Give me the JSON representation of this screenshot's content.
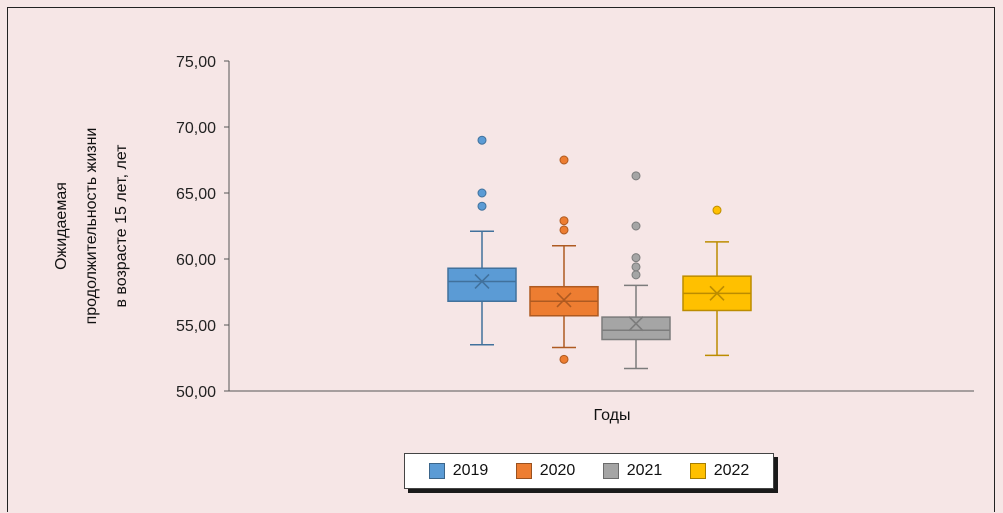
{
  "chart_data": {
    "type": "boxplot",
    "xlabel": "Годы",
    "ylabel_lines": [
      "Ожидаемая",
      "продолжительность жизни",
      "в возрасте 15 лет, лет"
    ],
    "ylim": [
      50,
      75
    ],
    "yticks": [
      "50,00",
      "55,00",
      "60,00",
      "65,00",
      "70,00",
      "75,00"
    ],
    "ytick_values": [
      50,
      55,
      60,
      65,
      70,
      75
    ],
    "series": [
      {
        "name": "2019",
        "color": "#5b9bd5",
        "stroke": "#41719c",
        "whisker_low": 53.5,
        "q1": 56.8,
        "median": 58.3,
        "q3": 59.3,
        "whisker_high": 62.1,
        "mean": 58.3,
        "outliers": [
          69.0,
          65.0,
          64.0
        ]
      },
      {
        "name": "2020",
        "color": "#ed7d31",
        "stroke": "#ae5a21",
        "whisker_low": 53.3,
        "q1": 55.7,
        "median": 56.8,
        "q3": 57.9,
        "whisker_high": 61.0,
        "mean": 56.9,
        "outliers": [
          67.5,
          62.9,
          62.2,
          52.4
        ]
      },
      {
        "name": "2021",
        "color": "#a5a5a5",
        "stroke": "#7c7c7c",
        "whisker_low": 51.7,
        "q1": 53.9,
        "median": 54.6,
        "q3": 55.6,
        "whisker_high": 58.0,
        "mean": 55.1,
        "outliers": [
          66.3,
          62.5,
          60.1,
          59.4,
          58.8
        ]
      },
      {
        "name": "2022",
        "color": "#ffc000",
        "stroke": "#bc8c00",
        "whisker_low": 52.7,
        "q1": 56.1,
        "median": 57.4,
        "q3": 58.7,
        "whisker_high": 61.3,
        "mean": 57.4,
        "outliers": [
          63.7
        ]
      }
    ]
  }
}
